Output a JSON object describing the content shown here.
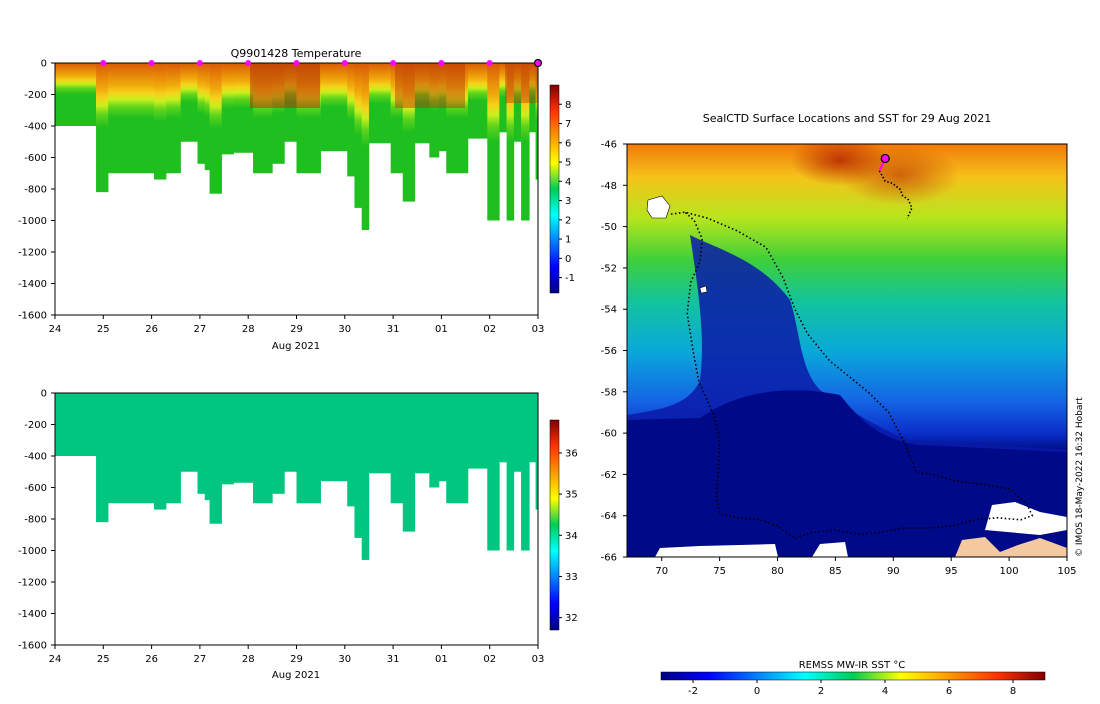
{
  "chart_data": [
    {
      "type": "heatmap",
      "title": "Q9901428  Temperature",
      "xlabel": "Aug 2021",
      "ylabel": "",
      "xlim": [
        24,
        34
      ],
      "ylim": [
        -1600,
        0
      ],
      "x_ticks": [
        "24",
        "25",
        "26",
        "27",
        "28",
        "29",
        "30",
        "31",
        "01",
        "02",
        "03"
      ],
      "y_ticks": [
        "0",
        "-200",
        "-400",
        "-600",
        "-800",
        "-1000",
        "-1200",
        "-1400",
        "-1600"
      ],
      "colorbar": {
        "min": -1.8,
        "max": 9,
        "ticks": [
          "-1",
          "0",
          "1",
          "2",
          "3",
          "4",
          "5",
          "6",
          "7",
          "8"
        ]
      },
      "profile_markers_x": [
        25,
        26,
        27,
        28,
        29,
        30,
        31,
        32,
        33
      ],
      "current_position_x": 34,
      "profiles": [
        {
          "t": 24.0,
          "bottom": -400
        },
        {
          "t": 24.6,
          "bottom": -400
        },
        {
          "t": 24.85,
          "bottom": -820
        },
        {
          "t": 25.1,
          "bottom": -700
        },
        {
          "t": 25.55,
          "bottom": -700
        },
        {
          "t": 25.9,
          "bottom": -700
        },
        {
          "t": 26.05,
          "bottom": -740
        },
        {
          "t": 26.3,
          "bottom": -700
        },
        {
          "t": 26.6,
          "bottom": -500
        },
        {
          "t": 26.95,
          "bottom": -640
        },
        {
          "t": 27.1,
          "bottom": -680
        },
        {
          "t": 27.2,
          "bottom": -830
        },
        {
          "t": 27.45,
          "bottom": -580
        },
        {
          "t": 27.7,
          "bottom": -570
        },
        {
          "t": 28.0,
          "bottom": -570
        },
        {
          "t": 28.1,
          "bottom": -700
        },
        {
          "t": 28.5,
          "bottom": -640
        },
        {
          "t": 28.75,
          "bottom": -500
        },
        {
          "t": 29.0,
          "bottom": -700
        },
        {
          "t": 29.5,
          "bottom": -560
        },
        {
          "t": 29.75,
          "bottom": -560
        },
        {
          "t": 30.05,
          "bottom": -720
        },
        {
          "t": 30.2,
          "bottom": -920
        },
        {
          "t": 30.35,
          "bottom": -1060
        },
        {
          "t": 30.5,
          "bottom": -510
        },
        {
          "t": 30.95,
          "bottom": -700
        },
        {
          "t": 31.2,
          "bottom": -880
        },
        {
          "t": 31.45,
          "bottom": -510
        },
        {
          "t": 31.75,
          "bottom": -600
        },
        {
          "t": 31.95,
          "bottom": -560
        },
        {
          "t": 32.1,
          "bottom": -700
        },
        {
          "t": 32.55,
          "bottom": -480
        },
        {
          "t": 32.95,
          "bottom": -1000
        },
        {
          "t": 33.2,
          "bottom": -440
        },
        {
          "t": 33.35,
          "bottom": -1000
        },
        {
          "t": 33.5,
          "bottom": -500
        },
        {
          "t": 33.65,
          "bottom": -1000
        },
        {
          "t": 33.82,
          "bottom": -440
        },
        {
          "t": 33.95,
          "bottom": -740
        },
        {
          "t": 34.0,
          "bottom": -740
        }
      ]
    },
    {
      "type": "heatmap",
      "title": "",
      "xlabel": "Aug 2021",
      "xlim": [
        24,
        34
      ],
      "ylim": [
        -1600,
        0
      ],
      "x_ticks": [
        "24",
        "25",
        "26",
        "27",
        "28",
        "29",
        "30",
        "31",
        "01",
        "02",
        "03"
      ],
      "y_ticks": [
        "0",
        "-200",
        "-400",
        "-600",
        "-800",
        "-1000",
        "-1200",
        "-1400",
        "-1600"
      ],
      "colorbar": {
        "min": 31.7,
        "max": 36.8,
        "ticks": [
          "32",
          "33",
          "34",
          "35",
          "36"
        ]
      },
      "fill_value": 34.3
    },
    {
      "type": "heatmap",
      "title": "SealCTD Surface Locations and SST for 29 Aug 2021",
      "xlim": [
        67,
        105
      ],
      "ylim": [
        -66,
        -46
      ],
      "x_ticks": [
        "70",
        "75",
        "80",
        "85",
        "90",
        "95",
        "100",
        "105"
      ],
      "y_ticks": [
        "-46",
        "-48",
        "-50",
        "-52",
        "-54",
        "-56",
        "-58",
        "-60",
        "-62",
        "-64",
        "-66"
      ],
      "colorbar": {
        "label": "REMSS MW-IR SST °C",
        "min": -3,
        "max": 9,
        "ticks": [
          "-2",
          "0",
          "2",
          "4",
          "6",
          "8"
        ]
      },
      "current_position": [
        89.3,
        -46.7
      ],
      "track": [
        [
          70.8,
          -49.4
        ],
        [
          72,
          -49.3
        ],
        [
          74,
          -49.6
        ],
        [
          76.5,
          -50.2
        ],
        [
          79,
          -51
        ],
        [
          80.5,
          -52.5
        ],
        [
          81.5,
          -54
        ],
        [
          82.6,
          -55.2
        ],
        [
          84.5,
          -56.5
        ],
        [
          86.5,
          -57.4
        ],
        [
          88,
          -58.1
        ],
        [
          89.6,
          -59
        ],
        [
          91,
          -60.5
        ],
        [
          92,
          -61.9
        ],
        [
          93.4,
          -62
        ],
        [
          95.2,
          -62.3
        ],
        [
          97.8,
          -62.5
        ],
        [
          100,
          -62.7
        ],
        [
          101.5,
          -63.4
        ],
        [
          102,
          -64
        ],
        [
          101,
          -64.2
        ],
        [
          99,
          -64.1
        ],
        [
          97,
          -64.2
        ],
        [
          95,
          -64.5
        ],
        [
          93,
          -64.6
        ],
        [
          90.7,
          -64.6
        ],
        [
          89,
          -64.8
        ],
        [
          87,
          -64.9
        ],
        [
          85,
          -64.7
        ],
        [
          83,
          -64.8
        ],
        [
          81.5,
          -65.1
        ],
        [
          80,
          -64.5
        ],
        [
          78.5,
          -64.2
        ],
        [
          76.5,
          -64.1
        ],
        [
          75,
          -63.9
        ],
        [
          74.7,
          -63
        ],
        [
          74.9,
          -61.8
        ],
        [
          75,
          -60.2
        ],
        [
          74.4,
          -59
        ],
        [
          73.2,
          -57.5
        ],
        [
          72.7,
          -56
        ],
        [
          72.2,
          -54.2
        ],
        [
          72.5,
          -52.7
        ],
        [
          73.3,
          -51.7
        ],
        [
          73.5,
          -50.6
        ],
        [
          72.8,
          -49.7
        ],
        [
          72,
          -49.3
        ]
      ],
      "track_north": [
        [
          88.8,
          -47.3
        ],
        [
          89.3,
          -47.8
        ],
        [
          89.9,
          -47.9
        ],
        [
          90.6,
          -48.2
        ],
        [
          90.8,
          -48.5
        ],
        [
          91.3,
          -48.7
        ],
        [
          91.6,
          -49.1
        ],
        [
          91.2,
          -49.6
        ]
      ]
    }
  ],
  "credit": "© IMOS 18-May-2022 16:32 Hobart",
  "colors": {
    "marker": "#ff00ff",
    "track": "#000000",
    "land": "#f5c9a0"
  }
}
